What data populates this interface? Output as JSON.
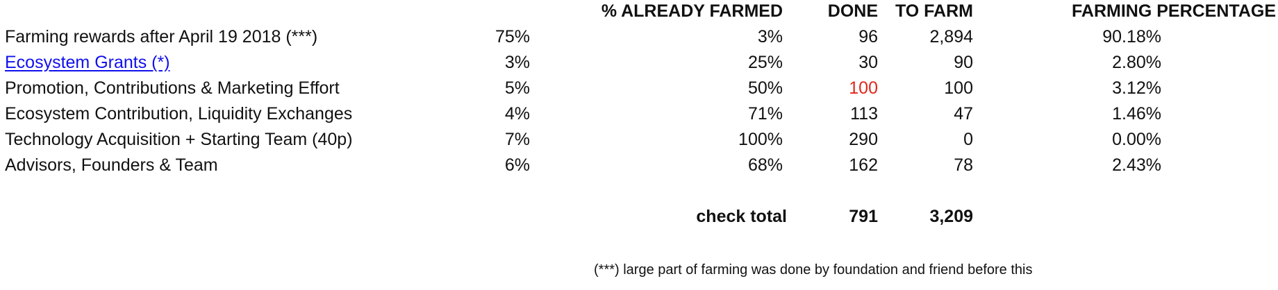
{
  "header": {
    "already_farmed": "% ALREADY FARMED",
    "done": "DONE",
    "to_farm": "TO FARM",
    "farming_percentage": "FARMING PERCENTAGE"
  },
  "rows": [
    {
      "label": "Farming rewards after April 19 2018 (***)",
      "pct": "75%",
      "already_farmed": "3%",
      "done": "96",
      "to_farm": "2,894",
      "farming_pct": "90.18%"
    },
    {
      "label": "Ecosystem Grants  (*)",
      "pct": "3%",
      "already_farmed": "25%",
      "done": "30",
      "to_farm": "90",
      "farming_pct": "2.80%"
    },
    {
      "label": "Promotion, Contributions & Marketing Effort",
      "pct": "5%",
      "already_farmed": "50%",
      "done": "100",
      "to_farm": "100",
      "farming_pct": "3.12%"
    },
    {
      "label": "Ecosystem Contribution, Liquidity Exchanges",
      "pct": "4%",
      "already_farmed": "71%",
      "done": "113",
      "to_farm": "47",
      "farming_pct": "1.46%"
    },
    {
      "label": "Technology Acquisition + Starting Team (40p)",
      "pct": "7%",
      "already_farmed": "100%",
      "done": "290",
      "to_farm": "0",
      "farming_pct": "0.00%"
    },
    {
      "label": "Advisors, Founders & Team",
      "pct": "6%",
      "already_farmed": "68%",
      "done": "162",
      "to_farm": "78",
      "farming_pct": "2.43%"
    }
  ],
  "total": {
    "label": "check total",
    "done": "791",
    "to_farm": "3,209"
  },
  "footnote": "(***) large part of farming was done by foundation and friend before this",
  "colors": {
    "link": "#1010ee",
    "highlight": "#e0281c"
  }
}
